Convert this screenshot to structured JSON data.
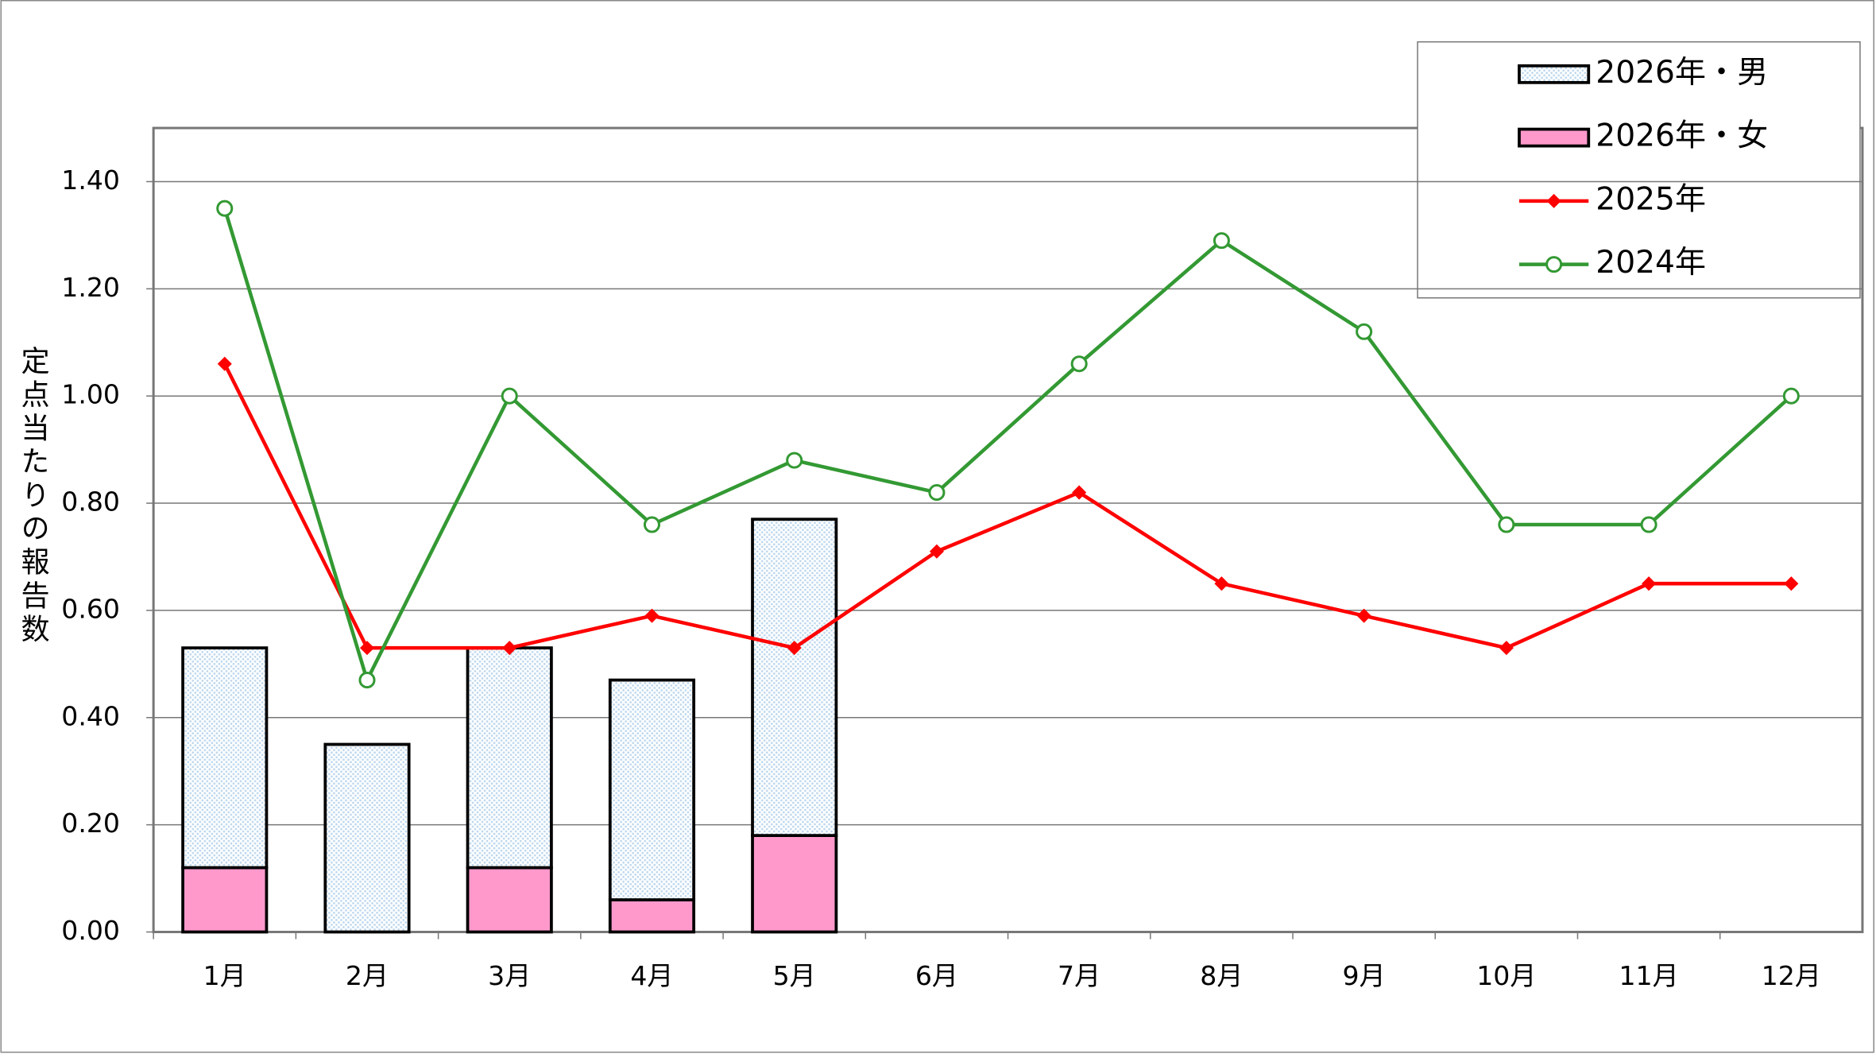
{
  "chart_data": {
    "type": "bar",
    "ylabel": "定点当たりの報告数",
    "categories": [
      "1月",
      "2月",
      "3月",
      "4月",
      "5月",
      "6月",
      "7月",
      "8月",
      "9月",
      "10月",
      "11月",
      "12月"
    ],
    "series": [
      {
        "name": "2026年・男",
        "type": "bar",
        "color": "#bdd7ee",
        "values": [
          0.41,
          0.35,
          0.41,
          0.41,
          0.59,
          null,
          null,
          null,
          null,
          null,
          null,
          null
        ]
      },
      {
        "name": "2026年・女",
        "type": "bar",
        "color": "#ff99cc",
        "values": [
          0.12,
          0,
          0.12,
          0.06,
          0.18,
          null,
          null,
          null,
          null,
          null,
          null,
          null
        ]
      },
      {
        "name": "2025年",
        "type": "line",
        "marker": "diamond",
        "color": "#ff0000",
        "values": [
          1.06,
          0.53,
          0.53,
          0.59,
          0.53,
          0.71,
          0.82,
          0.65,
          0.59,
          0.53,
          0.65,
          0.65
        ]
      },
      {
        "name": "2024年",
        "type": "line",
        "marker": "circle",
        "color": "#339933",
        "values": [
          1.35,
          0.47,
          1.0,
          0.76,
          0.88,
          0.82,
          1.06,
          1.29,
          1.12,
          0.76,
          0.76,
          1.0
        ]
      }
    ],
    "ylim": [
      0,
      1.5
    ],
    "yticks": [
      {
        "value": 0,
        "label": "0.00"
      },
      {
        "value": 0.2,
        "label": "0.20"
      },
      {
        "value": 0.4,
        "label": "0.40"
      },
      {
        "value": 0.6,
        "label": "0.60"
      },
      {
        "value": 0.8,
        "label": "0.80"
      },
      {
        "value": 1.0,
        "label": "1.00"
      },
      {
        "value": 1.2,
        "label": "1.20"
      },
      {
        "value": 1.4,
        "label": "1.40"
      }
    ],
    "grid": true,
    "legend": "top-right"
  }
}
